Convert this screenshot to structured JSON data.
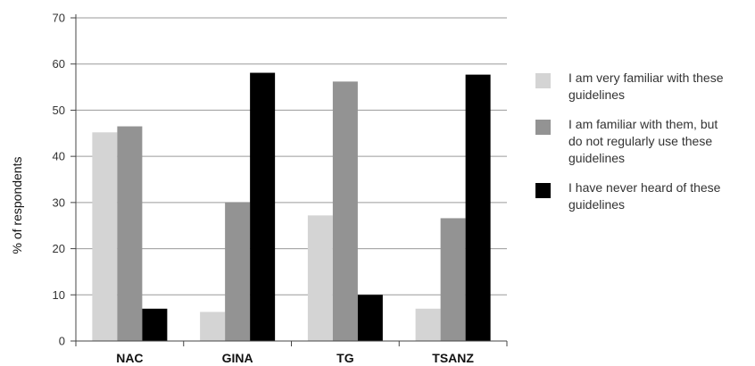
{
  "chart_data": {
    "type": "bar",
    "title": "",
    "xlabel": "",
    "ylabel": "% of respondents",
    "ylim": [
      0,
      70
    ],
    "yticks": [
      0,
      10,
      20,
      30,
      40,
      50,
      60,
      70
    ],
    "grid": true,
    "legend_position": "right",
    "categories": [
      "NAC",
      "GINA",
      "TG",
      "TSANZ"
    ],
    "series": [
      {
        "name": "I am very familiar with these guidelines",
        "legend_lines": [
          "I am very familiar with these",
          "guidelines"
        ],
        "color": "#d4d4d4",
        "values": [
          45.2,
          6.3,
          27.2,
          7.0
        ]
      },
      {
        "name": "I am familiar with them, but do not regularly use these guidelines",
        "legend_lines": [
          "I am familiar with them, but",
          "do not regularly use these",
          "guidelines"
        ],
        "color": "#939393",
        "values": [
          46.5,
          30.0,
          56.2,
          26.6
        ]
      },
      {
        "name": "I have never heard of these guidelines",
        "legend_lines": [
          "I have never heard of these",
          "guidelines"
        ],
        "color": "#000000",
        "values": [
          7.0,
          58.1,
          10.0,
          57.7
        ]
      }
    ]
  }
}
